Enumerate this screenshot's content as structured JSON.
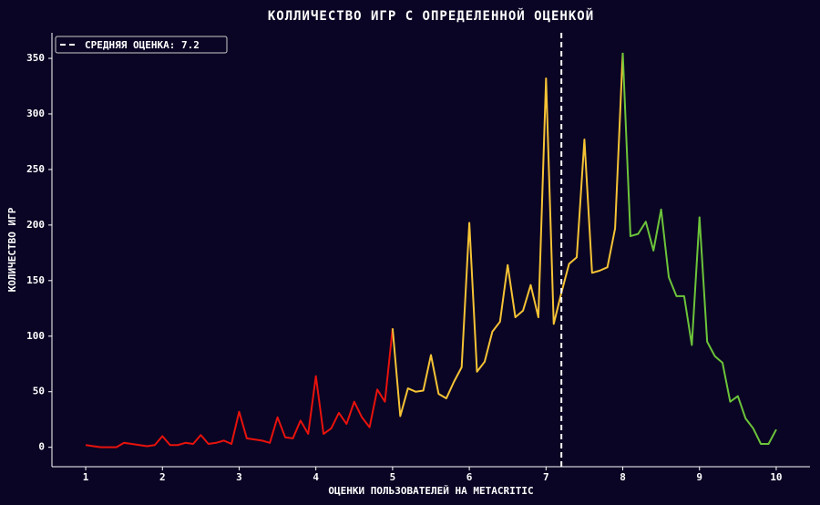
{
  "chart_data": {
    "type": "line",
    "title": "КОЛЛИЧЕСТВО ИГР С ОПРЕДЕЛЕННОЙ ОЦЕНКОЙ",
    "x_label": "ОЦЕНКИ ПОЛЬЗОВАТЕЛЕЙ НА METACRITIC",
    "y_label": "КОЛИЧЕСТВО ИГР",
    "series": [
      {
        "color": "#e8120c",
        "x": [
          1,
          1.1,
          1.2,
          1.3,
          1.4,
          1.5,
          1.6,
          1.7,
          1.8,
          1.9,
          2,
          2.1,
          2.2,
          2.3,
          2.4,
          2.5,
          2.6,
          2.7,
          2.8,
          2.9,
          3,
          3.1,
          3.2,
          3.3,
          3.4,
          3.5,
          3.6,
          3.7,
          3.8,
          3.9,
          4,
          4.1,
          4.2,
          4.3,
          4.4,
          4.5,
          4.6,
          4.7,
          4.8,
          4.9,
          5
        ],
        "values": [
          2,
          1,
          0,
          0,
          0,
          4,
          3,
          2,
          1,
          2,
          10,
          2,
          2,
          4,
          3,
          11,
          3,
          4,
          6,
          3,
          32,
          8,
          7,
          6,
          4,
          27,
          9,
          8,
          24,
          12,
          64,
          12,
          17,
          31,
          21,
          41,
          27,
          18,
          52,
          41,
          107
        ]
      },
      {
        "color": "#f6c335",
        "x": [
          5,
          5.1,
          5.2,
          5.3,
          5.4,
          5.5,
          5.6,
          5.7,
          5.8,
          5.9,
          6,
          6.1,
          6.2,
          6.3,
          6.4,
          6.5,
          6.6,
          6.7,
          6.8,
          6.9,
          7,
          7.1,
          7.2,
          7.3,
          7.4,
          7.5,
          7.6,
          7.7,
          7.8,
          7.9,
          8
        ],
        "values": [
          107,
          28,
          53,
          50,
          51,
          83,
          48,
          44,
          59,
          72,
          202,
          68,
          77,
          104,
          113,
          164,
          117,
          123,
          146,
          117,
          332,
          111,
          139,
          165,
          171,
          277,
          157,
          159,
          162,
          197,
          355
        ]
      },
      {
        "color": "#6cc43a",
        "x": [
          8,
          8.1,
          8.2,
          8.3,
          8.4,
          8.5,
          8.6,
          8.7,
          8.8,
          8.9,
          9,
          9.1,
          9.2,
          9.3,
          9.4,
          9.5,
          9.6,
          9.7,
          9.8,
          9.9,
          10
        ],
        "values": [
          355,
          190,
          192,
          203,
          177,
          214,
          153,
          136,
          136,
          92,
          207,
          95,
          82,
          76,
          41,
          46,
          26,
          17,
          3,
          3,
          16
        ]
      }
    ],
    "mean_line": {
      "value": 7.2,
      "label": "СРЕДНЯЯ ОЦЕНКА: 7.2",
      "color": "#ffffff"
    },
    "legend": "upper left",
    "xlim": [
      0.56,
      10.44
    ],
    "xticks": [
      1,
      2,
      3,
      4,
      5,
      6,
      7,
      8,
      9,
      10
    ],
    "ylim": [
      -17.5,
      373
    ],
    "yticks": [
      0,
      50,
      100,
      150,
      200,
      250,
      300,
      350
    ]
  }
}
